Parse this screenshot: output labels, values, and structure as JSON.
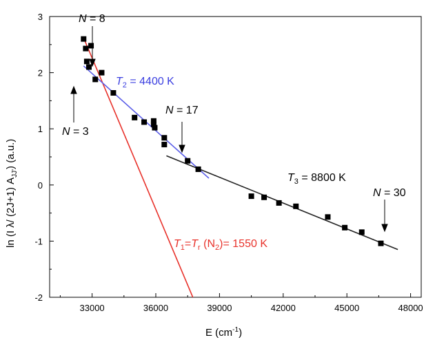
{
  "chart_data": {
    "type": "scatter",
    "xlabel": {
      "main": "E (cm",
      "sup": "-1",
      "tail": ")"
    },
    "ylabel": {
      "pre": "ln (I λ/ (2J+1) A",
      "sub": "JJ'",
      "post": ")  (a.u.)"
    },
    "xlim": [
      31000,
      48500
    ],
    "ylim": [
      -2,
      3
    ],
    "xticks": [
      33000,
      36000,
      39000,
      42000,
      45000,
      48000
    ],
    "xtick_labels": [
      "33000",
      "36000",
      "39000",
      "42000",
      "45000",
      "48000"
    ],
    "yticks": [
      -2,
      -1,
      0,
      1,
      2,
      3
    ],
    "ytick_labels": [
      "-2",
      "-1",
      "0",
      "1",
      "2",
      "3"
    ],
    "grid": false,
    "points": [
      {
        "x": 32600,
        "y": 2.6
      },
      {
        "x": 32700,
        "y": 2.43
      },
      {
        "x": 32750,
        "y": 2.2
      },
      {
        "x": 32850,
        "y": 2.1
      },
      {
        "x": 32950,
        "y": 2.48
      },
      {
        "x": 33150,
        "y": 1.88
      },
      {
        "x": 33450,
        "y": 2.0
      },
      {
        "x": 34000,
        "y": 1.64
      },
      {
        "x": 35000,
        "y": 1.2
      },
      {
        "x": 35450,
        "y": 1.12
      },
      {
        "x": 35900,
        "y": 1.14
      },
      {
        "x": 35900,
        "y": 1.08
      },
      {
        "x": 35950,
        "y": 1.02
      },
      {
        "x": 36400,
        "y": 0.84
      },
      {
        "x": 36400,
        "y": 0.72
      },
      {
        "x": 37500,
        "y": 0.43
      },
      {
        "x": 38000,
        "y": 0.28
      },
      {
        "x": 40500,
        "y": -0.2
      },
      {
        "x": 41100,
        "y": -0.22
      },
      {
        "x": 41800,
        "y": -0.32
      },
      {
        "x": 42600,
        "y": -0.38
      },
      {
        "x": 44100,
        "y": -0.57
      },
      {
        "x": 44900,
        "y": -0.76
      },
      {
        "x": 45700,
        "y": -0.84
      },
      {
        "x": 46600,
        "y": -1.04
      }
    ],
    "fits": [
      {
        "color": "#e8312a",
        "x": [
          32600,
          37800
        ],
        "y": [
          2.62,
          -2.05
        ]
      },
      {
        "color": "#5b5ee8",
        "x": [
          32600,
          38500
        ],
        "y": [
          2.12,
          0.12
        ]
      },
      {
        "color": "#222222",
        "x": [
          36500,
          47400
        ],
        "y": [
          0.52,
          -1.15
        ]
      }
    ],
    "annotations": [
      {
        "pre": "",
        "var": "N",
        "post": " = 8",
        "color": "#000000"
      },
      {
        "pre": "",
        "var": "N",
        "post": " = 3",
        "color": "#000000"
      },
      {
        "pre": "",
        "var": "N",
        "post": " = 17",
        "color": "#000000"
      },
      {
        "pre": "",
        "var": "N",
        "post": " = 30",
        "color": "#000000"
      }
    ],
    "temperature_labels": {
      "t2": {
        "var": "T",
        "sub": "2",
        "post": " = 4400 K",
        "color": "#3a3ee0"
      },
      "t3": {
        "var": "T",
        "sub": "3",
        "post": " = 8800 K",
        "color": "#000000"
      },
      "t1": {
        "var1": "T",
        "sub1": "1",
        "eq": "=",
        "var2": "T",
        "sub2": "r",
        "mid": " (N",
        "sub3": "2",
        "post": ")= 1550 K",
        "color": "#e8312a"
      }
    }
  }
}
